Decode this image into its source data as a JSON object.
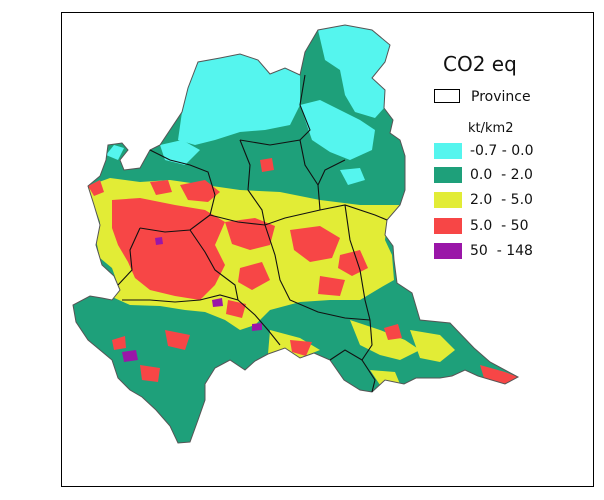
{
  "legend": {
    "title": "CO2 eq",
    "boundary_label": "Province",
    "unit": "kt/km2",
    "classes": [
      {
        "label": "-0.7 - 0.0",
        "color": "#55f5ee"
      },
      {
        "label": "0.0  - 2.0",
        "color": "#1ea07a"
      },
      {
        "label": "2.0  - 5.0",
        "color": "#e2ec36"
      },
      {
        "label": "5.0  - 50",
        "color": "#f74646"
      },
      {
        "label": "50  - 148",
        "color": "#9a16a8"
      }
    ]
  }
}
